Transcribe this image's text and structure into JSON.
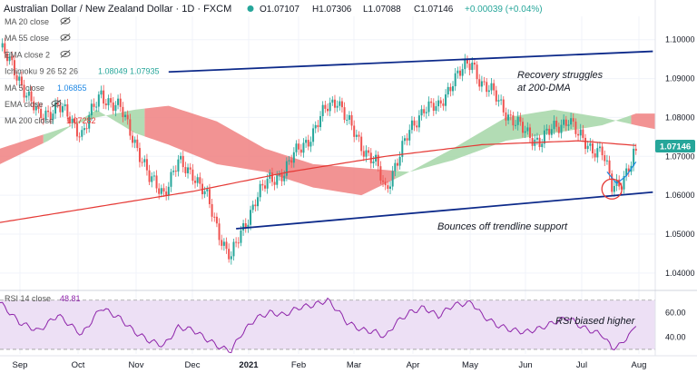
{
  "header": {
    "title": "Australian Dollar / New Zealand Dollar · 1D · FXCM",
    "ohlc": {
      "o": "O1.07107",
      "h": "H1.07306",
      "l": "L1.07088",
      "c": "C1.07146",
      "chg": "+0.00039 (+0.04%)"
    }
  },
  "legend": [
    {
      "label": "MA 20 close",
      "value": "",
      "icon": "eye-off-icon"
    },
    {
      "label": "MA 55 close",
      "value": "",
      "icon": "eye-off-icon"
    },
    {
      "label": "EMA close 2",
      "value": "",
      "icon": "eye-off-icon"
    },
    {
      "label": "Ichimoku 9 26 52 26",
      "value": "1.08049 1.07935",
      "icon": ""
    },
    {
      "label": "MA 5 close",
      "value": "1.06855",
      "icon": ""
    },
    {
      "label": "EMA close",
      "value": "",
      "icon": "eye-off-icon"
    },
    {
      "label": "MA 200 close",
      "value": "1.07282",
      "icon": ""
    }
  ],
  "annotations": {
    "recovery": [
      "Recovery struggles",
      "at 200-DMA"
    ],
    "bounce": "Bounces off trendline support",
    "rsi": "RSI biased higher"
  },
  "rsi_legend": {
    "label": "RSI 14 close",
    "value": "48.81"
  },
  "price_badge": "1.07146",
  "colors": {
    "bull": "#26a69a",
    "bear": "#ef5350",
    "ma200": "#e53935",
    "ma5": "#1e88e5",
    "trend": "#0d2a8a",
    "cloud_bull": "#a5d6a7",
    "cloud_bear": "#f08080",
    "rsi": "#8e24aa",
    "rsi_band": "#ede0f5",
    "badge": "#26a69a"
  },
  "chart_data": {
    "type": "candlestick",
    "symbol": "AUDNZD",
    "timeframe": "1D",
    "ylim": [
      1.036,
      1.106
    ],
    "y_ticks": [
      "1.10000",
      "1.09000",
      "1.08000",
      "1.07000",
      "1.06000",
      "1.05000",
      "1.04000"
    ],
    "x_ticks": [
      "Sep",
      "Oct",
      "Nov",
      "Dec",
      "2021",
      "Feb",
      "Mar",
      "Apr",
      "May",
      "Jun",
      "Jul",
      "Aug"
    ],
    "price_path": [
      [
        0,
        1.098
      ],
      [
        8,
        1.09
      ],
      [
        16,
        1.08
      ],
      [
        24,
        1.083
      ],
      [
        34,
        1.076
      ],
      [
        42,
        1.086
      ],
      [
        50,
        1.082
      ],
      [
        56,
        1.074
      ],
      [
        62,
        1.064
      ],
      [
        68,
        1.061
      ],
      [
        74,
        1.068
      ],
      [
        80,
        1.066
      ],
      [
        86,
        1.059
      ],
      [
        90,
        1.052
      ],
      [
        94,
        1.046
      ],
      [
        96,
        1.044
      ],
      [
        100,
        1.05
      ],
      [
        106,
        1.059
      ],
      [
        112,
        1.064
      ],
      [
        118,
        1.066
      ],
      [
        124,
        1.072
      ],
      [
        130,
        1.076
      ],
      [
        136,
        1.083
      ],
      [
        140,
        1.085
      ],
      [
        144,
        1.079
      ],
      [
        150,
        1.073
      ],
      [
        156,
        1.068
      ],
      [
        160,
        1.061
      ],
      [
        164,
        1.068
      ],
      [
        170,
        1.076
      ],
      [
        176,
        1.083
      ],
      [
        182,
        1.082
      ],
      [
        188,
        1.09
      ],
      [
        196,
        1.094
      ],
      [
        200,
        1.089
      ],
      [
        206,
        1.085
      ],
      [
        212,
        1.08
      ],
      [
        218,
        1.076
      ],
      [
        224,
        1.074
      ],
      [
        230,
        1.077
      ],
      [
        236,
        1.08
      ],
      [
        240,
        1.075
      ],
      [
        244,
        1.073
      ],
      [
        250,
        1.071
      ],
      [
        254,
        1.062
      ],
      [
        258,
        1.064
      ],
      [
        262,
        1.068
      ],
      [
        264,
        1.0714
      ]
    ],
    "ma200_path": [
      [
        0,
        1.053
      ],
      [
        40,
        1.057
      ],
      [
        80,
        1.061
      ],
      [
        120,
        1.066
      ],
      [
        160,
        1.07
      ],
      [
        200,
        1.073
      ],
      [
        240,
        1.074
      ],
      [
        264,
        1.0728
      ]
    ],
    "ma5_path": [
      [
        252,
        1.066
      ],
      [
        256,
        1.063
      ],
      [
        260,
        1.065
      ],
      [
        264,
        1.0686
      ]
    ],
    "trendlines": [
      {
        "name": "upper",
        "from": [
          70,
          1.0917
        ],
        "to": [
          271,
          1.097
        ]
      },
      {
        "name": "lower",
        "from": [
          98,
          1.0514
        ],
        "to": [
          271,
          1.0608
        ]
      }
    ],
    "rsi": {
      "label": "RSI 14 close",
      "last": 48.81,
      "ylim": [
        27,
        75
      ],
      "y_ticks": [
        "60.00",
        "40.00"
      ],
      "band": [
        30,
        70
      ],
      "path": [
        [
          0,
          68
        ],
        [
          8,
          52
        ],
        [
          16,
          45
        ],
        [
          24,
          58
        ],
        [
          34,
          42
        ],
        [
          42,
          64
        ],
        [
          50,
          55
        ],
        [
          56,
          44
        ],
        [
          62,
          37
        ],
        [
          68,
          33
        ],
        [
          74,
          48
        ],
        [
          80,
          46
        ],
        [
          86,
          38
        ],
        [
          92,
          31
        ],
        [
          96,
          29
        ],
        [
          100,
          42
        ],
        [
          106,
          55
        ],
        [
          112,
          60
        ],
        [
          118,
          58
        ],
        [
          124,
          64
        ],
        [
          130,
          66
        ],
        [
          136,
          70
        ],
        [
          140,
          62
        ],
        [
          144,
          52
        ],
        [
          150,
          46
        ],
        [
          156,
          44
        ],
        [
          160,
          40
        ],
        [
          164,
          51
        ],
        [
          170,
          60
        ],
        [
          176,
          64
        ],
        [
          182,
          57
        ],
        [
          188,
          66
        ],
        [
          196,
          68
        ],
        [
          200,
          58
        ],
        [
          206,
          50
        ],
        [
          212,
          46
        ],
        [
          218,
          44
        ],
        [
          224,
          47
        ],
        [
          230,
          52
        ],
        [
          236,
          56
        ],
        [
          240,
          50
        ],
        [
          244,
          46
        ],
        [
          250,
          42
        ],
        [
          254,
          31
        ],
        [
          258,
          34
        ],
        [
          262,
          45
        ],
        [
          264,
          48.81
        ]
      ]
    }
  }
}
